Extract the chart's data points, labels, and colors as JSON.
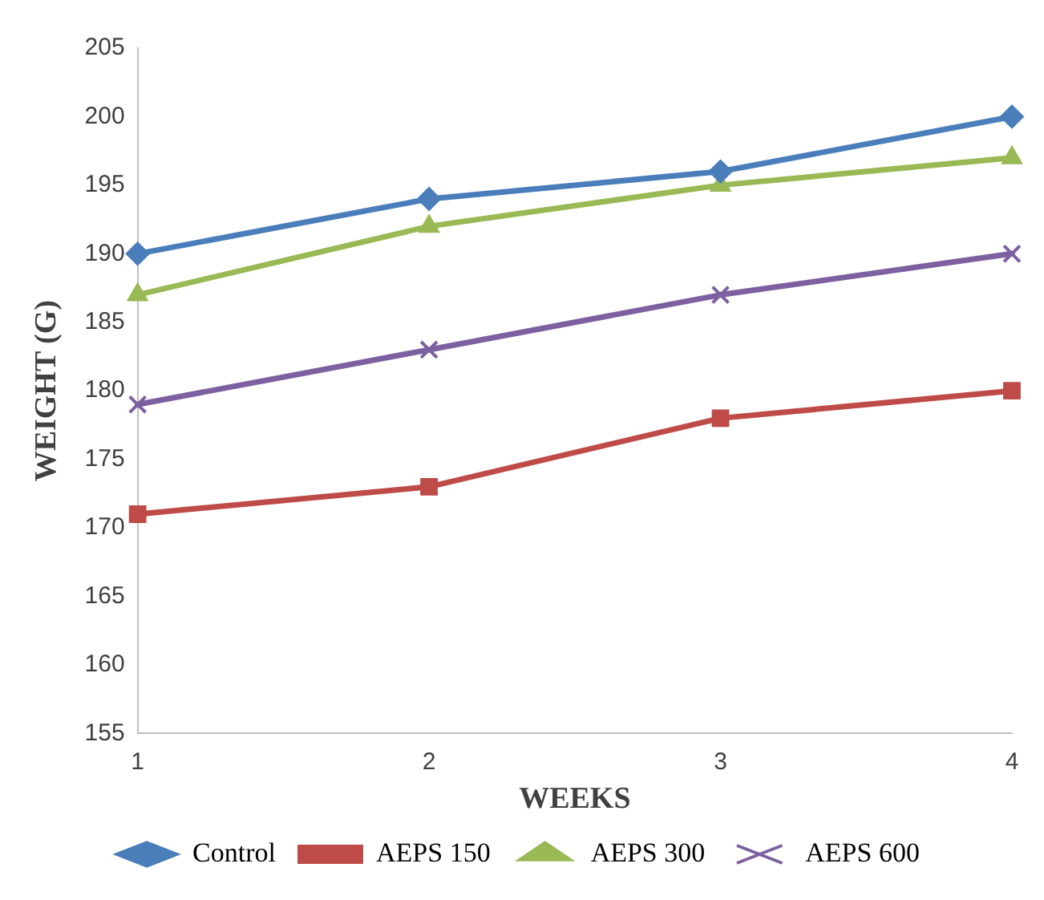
{
  "chart_data": {
    "type": "line",
    "xlabel": "WEEKS",
    "ylabel": "WEIGHT (G)",
    "categories": [
      "1",
      "2",
      "3",
      "4"
    ],
    "series": [
      {
        "name": "Control",
        "color": "#4a7ebb",
        "marker": "diamond",
        "values": [
          190,
          194,
          196,
          200
        ]
      },
      {
        "name": "AEPS 150",
        "color": "#be4b48",
        "marker": "square",
        "values": [
          171,
          173,
          178,
          180
        ]
      },
      {
        "name": "AEPS 300",
        "color": "#98b954",
        "marker": "triangle",
        "values": [
          187,
          192,
          195,
          197
        ]
      },
      {
        "name": "AEPS 600",
        "color": "#7d60a0",
        "marker": "cross",
        "values": [
          179,
          183,
          187,
          190
        ]
      }
    ],
    "ylim": [
      155,
      205
    ],
    "yticks": [
      155,
      160,
      165,
      170,
      175,
      180,
      185,
      190,
      195,
      200,
      205
    ],
    "grid": false,
    "legend": "bottom",
    "line_style": "solid"
  }
}
